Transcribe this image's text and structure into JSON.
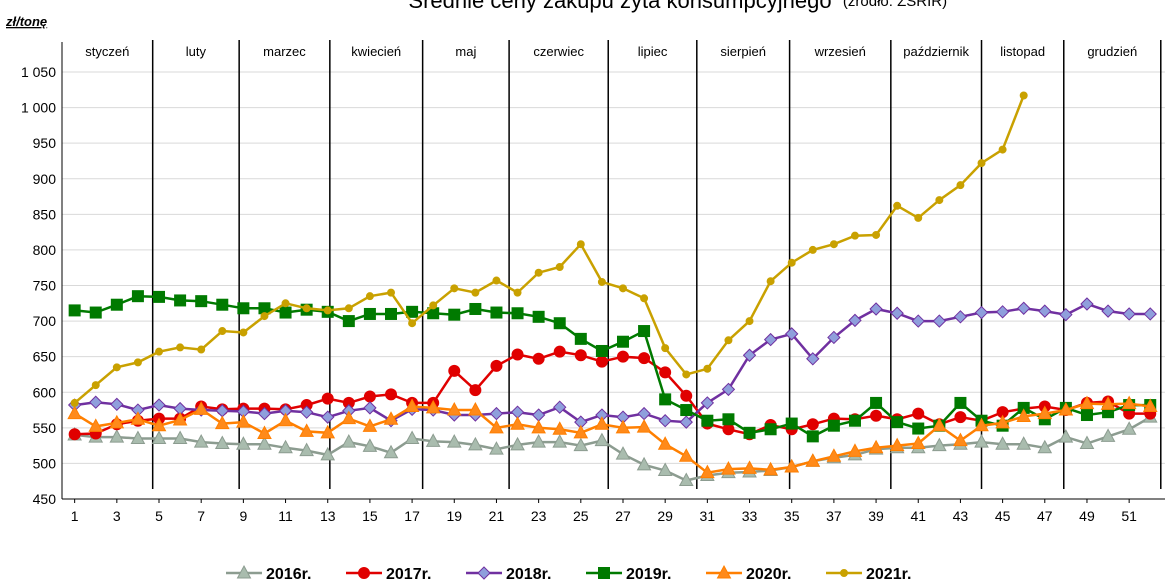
{
  "chart_data": {
    "type": "line",
    "title": "Średnie ceny zakupu żyta konsumpcyjnego",
    "subtitle": "(źródło: ZSRIR)",
    "y_label": "zł/tonę",
    "x": [
      1,
      2,
      3,
      4,
      5,
      6,
      7,
      8,
      9,
      10,
      11,
      12,
      13,
      14,
      15,
      16,
      17,
      18,
      19,
      20,
      21,
      22,
      23,
      24,
      25,
      26,
      27,
      28,
      29,
      30,
      31,
      32,
      33,
      34,
      35,
      36,
      37,
      38,
      39,
      40,
      41,
      42,
      43,
      44,
      45,
      46,
      47,
      48,
      49,
      50,
      51,
      52
    ],
    "xlim": [
      0.4,
      52.7
    ],
    "xticks": [
      1,
      3,
      5,
      7,
      9,
      11,
      13,
      15,
      17,
      19,
      21,
      23,
      25,
      27,
      29,
      31,
      33,
      35,
      37,
      39,
      41,
      43,
      45,
      47,
      49,
      51
    ],
    "ylim": [
      450,
      1050
    ],
    "yticks": [
      450,
      500,
      550,
      600,
      650,
      700,
      750,
      800,
      850,
      900,
      950,
      {
        "value": 1000,
        "label": "1 000"
      },
      {
        "value": 1050,
        "label": "1 050"
      }
    ],
    "grid": true,
    "months": [
      "styczeń",
      "luty",
      "marzec",
      "kwiecień",
      "maj",
      "czerwiec",
      "lipiec",
      "sierpień",
      "wrzesień",
      "październik",
      "listopad",
      "grudzień"
    ],
    "month_dividers": [
      4.7,
      8.8,
      13.1,
      17.5,
      21.6,
      26.3,
      30.5,
      34.9,
      39.7,
      44.0,
      47.9,
      52.5
    ],
    "legend": "bottom",
    "series": [
      {
        "name": "2016r.",
        "color": "#8c9c90",
        "marker": "triangle",
        "marker_fill": "#a9bcae",
        "values": [
          540,
          537,
          537,
          535,
          535,
          535,
          530,
          528,
          527,
          527,
          522,
          518,
          512,
          530,
          524,
          515,
          535,
          531,
          530,
          526,
          520,
          526,
          530,
          530,
          525,
          532,
          513,
          498,
          490,
          476,
          483,
          487,
          488,
          490,
          495,
          503,
          508,
          512,
          520,
          522,
          522,
          525,
          527,
          530,
          527,
          527,
          522,
          537,
          528,
          538,
          548,
          565
        ]
      },
      {
        "name": "2017r.",
        "color": "#e00000",
        "marker": "circle",
        "marker_fill": "#e00000",
        "values": [
          541,
          542,
          555,
          560,
          563,
          563,
          580,
          576,
          577,
          577,
          576,
          582,
          591,
          585,
          594,
          597,
          585,
          585,
          630,
          603,
          637,
          653,
          647,
          657,
          652,
          643,
          650,
          648,
          628,
          595,
          556,
          548,
          541,
          554,
          548,
          555,
          563,
          562,
          567,
          562,
          570,
          555,
          565,
          560,
          572,
          577,
          580,
          575,
          585,
          587,
          570,
          570
        ]
      },
      {
        "name": "2018r.",
        "color": "#7030a0",
        "marker": "diamond",
        "marker_fill": "#8f9fdc",
        "values": [
          582,
          586,
          583,
          575,
          582,
          577,
          575,
          574,
          573,
          570,
          574,
          572,
          565,
          574,
          578,
          560,
          576,
          575,
          568,
          568,
          570,
          572,
          568,
          579,
          558,
          568,
          565,
          570,
          560,
          558,
          585,
          604,
          652,
          674,
          682,
          647,
          677,
          701,
          717,
          711,
          700,
          700,
          706,
          712,
          713,
          718,
          714,
          709,
          724,
          714,
          710,
          710
        ]
      },
      {
        "name": "2019r.",
        "color": "#007a00",
        "marker": "square",
        "marker_fill": "#007a00",
        "values": [
          715,
          712,
          723,
          735,
          734,
          729,
          728,
          723,
          718,
          718,
          712,
          716,
          713,
          700,
          710,
          710,
          713,
          711,
          709,
          717,
          712,
          711,
          706,
          697,
          675,
          658,
          671,
          686,
          590,
          575,
          560,
          562,
          543,
          548,
          556,
          538,
          553,
          560,
          585,
          558,
          549,
          553,
          585,
          560,
          553,
          578,
          562,
          578,
          568,
          572,
          582,
          582
        ]
      },
      {
        "name": "2020r.",
        "color": "#ff7f00",
        "marker": "triangle",
        "marker_fill": "#ff8a1a",
        "values": [
          570,
          552,
          557,
          562,
          553,
          561,
          576,
          556,
          558,
          542,
          560,
          545,
          543,
          563,
          552,
          562,
          580,
          578,
          575,
          575,
          550,
          555,
          550,
          548,
          543,
          555,
          550,
          551,
          527,
          510,
          487,
          492,
          493,
          491,
          495,
          503,
          510,
          517,
          522,
          525,
          528,
          553,
          532,
          553,
          557,
          566,
          570,
          575,
          584,
          583,
          584,
          580
        ]
      },
      {
        "name": "2021r.",
        "color": "#c9a100",
        "marker": "dot",
        "marker_fill": "#c9a100",
        "values": [
          585,
          610,
          635,
          642,
          657,
          663,
          660,
          686,
          684,
          707,
          725,
          718,
          715,
          718,
          735,
          740,
          697,
          722,
          746,
          740,
          757,
          740,
          768,
          776,
          808,
          755,
          746,
          732,
          662,
          625,
          633,
          673,
          700,
          756,
          782,
          800,
          808,
          820,
          821,
          862,
          845,
          870,
          891,
          922,
          941,
          1017,
          null,
          null,
          null,
          null,
          null,
          null
        ]
      }
    ]
  }
}
